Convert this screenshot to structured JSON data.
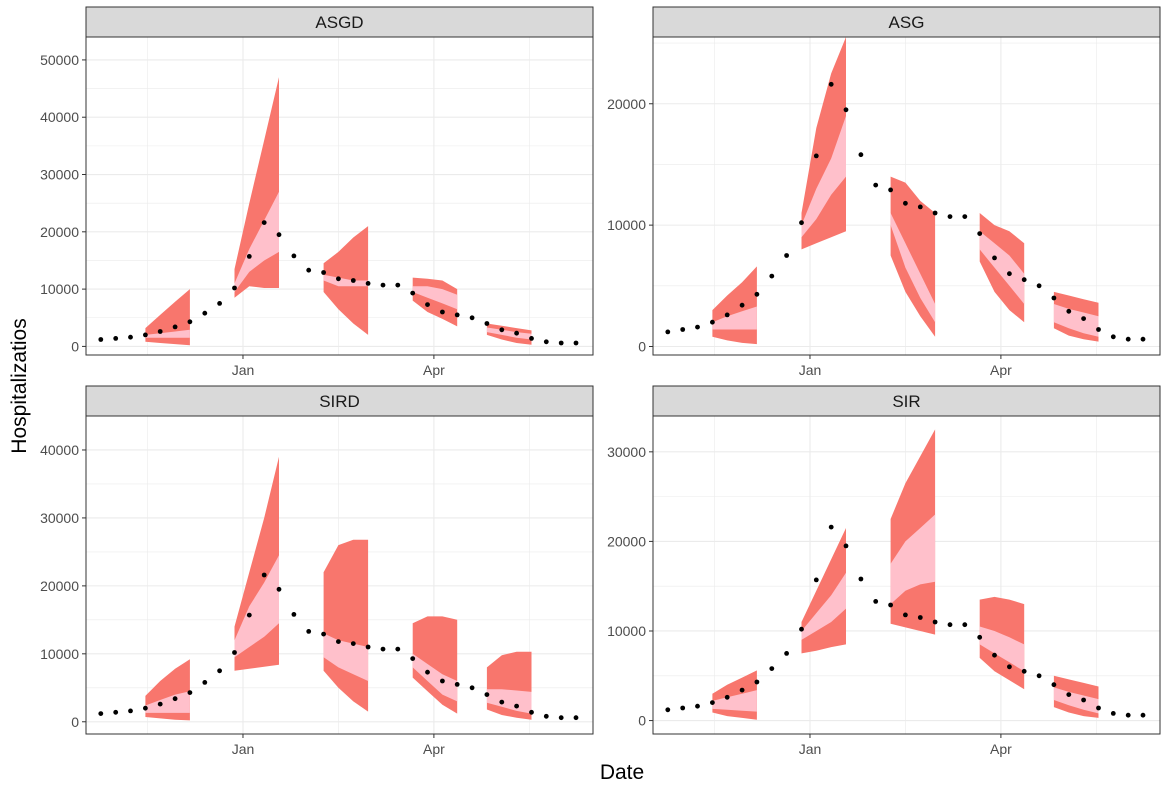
{
  "colors": {
    "outer_band": "#F8766D",
    "inner_band": "#FFC0CB",
    "points": "#000000",
    "strip_fill": "#D9D9D9",
    "grid": "#EBEBEB",
    "panel_border": "#333333"
  },
  "chart_data": {
    "type": "area",
    "xlabel": "Date",
    "ylabel": "Hospitalizatios",
    "x_ticks": [
      "Jan",
      "Apr"
    ],
    "x_tick_dates": [
      "2021-01-01",
      "2021-04-01"
    ],
    "xlim": [
      "2020-10-19",
      "2021-06-15"
    ],
    "observed_dates": [
      "2020-10-26",
      "2020-11-02",
      "2020-11-09",
      "2020-11-16",
      "2020-11-23",
      "2020-11-30",
      "2020-12-07",
      "2020-12-14",
      "2020-12-21",
      "2020-12-28",
      "2021-01-04",
      "2021-01-11",
      "2021-01-18",
      "2021-01-25",
      "2021-02-01",
      "2021-02-08",
      "2021-02-15",
      "2021-02-22",
      "2021-03-01",
      "2021-03-08",
      "2021-03-15",
      "2021-03-22",
      "2021-03-29",
      "2021-04-05",
      "2021-04-12",
      "2021-04-19",
      "2021-04-26",
      "2021-05-03",
      "2021-05-10",
      "2021-05-17",
      "2021-05-24",
      "2021-05-31",
      "2021-06-07"
    ],
    "observed_values": [
      1200,
      1400,
      1600,
      2000,
      2600,
      3400,
      4300,
      5800,
      7500,
      10200,
      15700,
      21600,
      19500,
      15800,
      13300,
      12900,
      11800,
      11500,
      11000,
      10700,
      10700,
      9300,
      7300,
      6000,
      5500,
      5000,
      4000,
      2900,
      2300,
      1400,
      800,
      600,
      600
    ],
    "panels": [
      {
        "title": "ASGD",
        "ylim": [
          -1500,
          54000
        ],
        "yticks": [
          0,
          10000,
          20000,
          30000,
          40000,
          50000
        ],
        "bands": [
          {
            "dates": [
              "2020-11-16",
              "2020-11-23",
              "2020-11-30",
              "2020-12-07"
            ],
            "outer_lo": [
              800,
              600,
              400,
              200
            ],
            "outer_hi": [
              3200,
              5500,
              7800,
              10000
            ],
            "inner_lo": [
              1500,
              1500,
              1500,
              1500
            ],
            "inner_hi": [
              2000,
              2300,
              2600,
              2900
            ]
          },
          {
            "dates": [
              "2020-12-28",
              "2021-01-04",
              "2021-01-11",
              "2021-01-18"
            ],
            "outer_lo": [
              8500,
              10500,
              10200,
              10200
            ],
            "outer_hi": [
              13500,
              25000,
              36000,
              47000
            ],
            "inner_lo": [
              9500,
              13000,
              15000,
              16500
            ],
            "inner_hi": [
              11000,
              17000,
              22000,
              27000
            ]
          },
          {
            "dates": [
              "2021-02-08",
              "2021-02-15",
              "2021-02-22",
              "2021-03-01"
            ],
            "outer_lo": [
              9500,
              6500,
              4000,
              2000
            ],
            "outer_hi": [
              14500,
              16500,
              19000,
              21000
            ],
            "inner_lo": [
              11500,
              10500,
              10500,
              10500
            ],
            "inner_hi": [
              12500,
              12000,
              11500,
              11500
            ]
          },
          {
            "dates": [
              "2021-03-22",
              "2021-03-29",
              "2021-04-05",
              "2021-04-12"
            ],
            "outer_lo": [
              8000,
              6000,
              4800,
              3500
            ],
            "outer_hi": [
              12000,
              11800,
              11500,
              10000
            ],
            "inner_lo": [
              9500,
              8500,
              7500,
              6500
            ],
            "inner_hi": [
              10500,
              10500,
              10000,
              9000
            ]
          },
          {
            "dates": [
              "2021-04-26",
              "2021-05-03",
              "2021-05-10",
              "2021-05-17"
            ],
            "outer_lo": [
              2000,
              1200,
              600,
              300
            ],
            "outer_hi": [
              4000,
              3600,
              3200,
              2800
            ],
            "inner_lo": [
              2500,
              2000,
              1500,
              1200
            ],
            "inner_hi": [
              3300,
              2900,
              2500,
              2200
            ]
          }
        ]
      },
      {
        "title": "ASG",
        "ylim": [
          -700,
          25500
        ],
        "yticks": [
          0,
          10000,
          20000
        ],
        "bands": [
          {
            "dates": [
              "2020-11-16",
              "2020-11-23",
              "2020-11-30",
              "2020-12-07"
            ],
            "outer_lo": [
              800,
              500,
              300,
              200
            ],
            "outer_hi": [
              3000,
              4200,
              5300,
              6600
            ],
            "inner_lo": [
              1400,
              1400,
              1400,
              1400
            ],
            "inner_hi": [
              2000,
              2500,
              2900,
              3300
            ]
          },
          {
            "dates": [
              "2020-12-28",
              "2021-01-04",
              "2021-01-11",
              "2021-01-18"
            ],
            "outer_lo": [
              8000,
              8500,
              9000,
              9500
            ],
            "outer_hi": [
              11000,
              18000,
              22500,
              25500
            ],
            "inner_lo": [
              9000,
              10500,
              12500,
              14000
            ],
            "inner_hi": [
              10000,
              13000,
              15500,
              19000
            ]
          },
          {
            "dates": [
              "2021-02-08",
              "2021-02-15",
              "2021-02-22",
              "2021-03-01"
            ],
            "outer_lo": [
              7500,
              4500,
              2500,
              800
            ],
            "outer_hi": [
              14000,
              13500,
              12000,
              11000
            ],
            "inner_lo": [
              10000,
              6500,
              4000,
              2000
            ],
            "inner_hi": [
              11000,
              8500,
              6000,
              3500
            ]
          },
          {
            "dates": [
              "2021-03-22",
              "2021-03-29",
              "2021-04-05",
              "2021-04-12"
            ],
            "outer_lo": [
              7000,
              4500,
              3000,
              2000
            ],
            "outer_hi": [
              11000,
              10000,
              9500,
              8500
            ],
            "inner_lo": [
              8000,
              6500,
              5000,
              3500
            ],
            "inner_hi": [
              9500,
              8500,
              7500,
              6000
            ]
          },
          {
            "dates": [
              "2021-04-26",
              "2021-05-03",
              "2021-05-10",
              "2021-05-17"
            ],
            "outer_lo": [
              1500,
              900,
              600,
              400
            ],
            "outer_hi": [
              4500,
              4200,
              3900,
              3600
            ],
            "inner_lo": [
              2000,
              1500,
              1100,
              800
            ],
            "inner_hi": [
              3500,
              3100,
              2800,
              2500
            ]
          }
        ]
      },
      {
        "title": "SIRD",
        "ylim": [
          -1800,
          45000
        ],
        "yticks": [
          0,
          10000,
          20000,
          30000,
          40000
        ],
        "bands": [
          {
            "dates": [
              "2020-11-16",
              "2020-11-23",
              "2020-11-30",
              "2020-12-07"
            ],
            "outer_lo": [
              700,
              500,
              300,
              200
            ],
            "outer_hi": [
              3800,
              6000,
              7800,
              9200
            ],
            "inner_lo": [
              1300,
              1300,
              1300,
              1300
            ],
            "inner_hi": [
              2400,
              3200,
              4000,
              4500
            ]
          },
          {
            "dates": [
              "2020-12-28",
              "2021-01-04",
              "2021-01-11",
              "2021-01-18"
            ],
            "outer_lo": [
              7500,
              7800,
              8100,
              8400
            ],
            "outer_hi": [
              14000,
              22000,
              30000,
              39000
            ],
            "inner_lo": [
              9500,
              11000,
              12500,
              14500
            ],
            "inner_hi": [
              12000,
              17000,
              20500,
              24500
            ]
          },
          {
            "dates": [
              "2021-02-08",
              "2021-02-15",
              "2021-02-22",
              "2021-03-01"
            ],
            "outer_lo": [
              7500,
              5000,
              3000,
              1500
            ],
            "outer_hi": [
              22000,
              26000,
              26800,
              26800
            ],
            "inner_lo": [
              9500,
              8000,
              7000,
              6000
            ],
            "inner_hi": [
              13000,
              12000,
              11500,
              11000
            ]
          },
          {
            "dates": [
              "2021-03-22",
              "2021-03-29",
              "2021-04-05",
              "2021-04-12"
            ],
            "outer_lo": [
              6500,
              4500,
              2500,
              1200
            ],
            "outer_hi": [
              14500,
              15500,
              15500,
              15000
            ],
            "inner_lo": [
              8000,
              6000,
              4000,
              3000
            ],
            "inner_hi": [
              10000,
              8500,
              7000,
              6000
            ]
          },
          {
            "dates": [
              "2021-04-26",
              "2021-05-03",
              "2021-05-10",
              "2021-05-17"
            ],
            "outer_lo": [
              1800,
              1000,
              600,
              300
            ],
            "outer_hi": [
              8000,
              9800,
              10300,
              10300
            ],
            "inner_lo": [
              2800,
              2200,
              1600,
              1200
            ],
            "inner_hi": [
              4800,
              4800,
              4600,
              4400
            ]
          }
        ]
      },
      {
        "title": "SIR",
        "ylim": [
          -1500,
          34000
        ],
        "yticks": [
          0,
          10000,
          20000,
          30000
        ],
        "bands": [
          {
            "dates": [
              "2020-11-16",
              "2020-11-23",
              "2020-11-30",
              "2020-12-07"
            ],
            "outer_lo": [
              900,
              500,
              300,
              100
            ],
            "outer_hi": [
              3000,
              4000,
              4800,
              5600
            ],
            "inner_lo": [
              1300,
              1200,
              1100,
              1000
            ],
            "inner_hi": [
              2200,
              2600,
              3000,
              3400
            ]
          },
          {
            "dates": [
              "2020-12-28",
              "2021-01-04",
              "2021-01-11",
              "2021-01-18"
            ],
            "outer_lo": [
              7500,
              7800,
              8200,
              8500
            ],
            "outer_hi": [
              11000,
              14500,
              18000,
              21500
            ],
            "inner_lo": [
              9000,
              10000,
              11000,
              12500
            ],
            "inner_hi": [
              10000,
              12000,
              14000,
              16500
            ]
          },
          {
            "dates": [
              "2021-02-08",
              "2021-02-15",
              "2021-02-22",
              "2021-03-01"
            ],
            "outer_lo": [
              10800,
              10400,
              10000,
              9600
            ],
            "outer_hi": [
              22500,
              26500,
              29500,
              32500
            ],
            "inner_lo": [
              13000,
              14500,
              15200,
              15500
            ],
            "inner_hi": [
              17500,
              20000,
              21500,
              23000
            ]
          },
          {
            "dates": [
              "2021-03-22",
              "2021-03-29",
              "2021-04-05",
              "2021-04-12"
            ],
            "outer_lo": [
              7000,
              5500,
              4500,
              3500
            ],
            "outer_hi": [
              13500,
              13800,
              13500,
              13000
            ],
            "inner_lo": [
              8500,
              7500,
              6500,
              5500
            ],
            "inner_hi": [
              10500,
              10000,
              9300,
              8500
            ]
          },
          {
            "dates": [
              "2021-04-26",
              "2021-05-03",
              "2021-05-10",
              "2021-05-17"
            ],
            "outer_lo": [
              1500,
              900,
              500,
              300
            ],
            "outer_hi": [
              5000,
              4600,
              4200,
              3800
            ],
            "inner_lo": [
              2300,
              1700,
              1200,
              800
            ],
            "inner_hi": [
              3700,
              3200,
              2800,
              2400
            ]
          }
        ]
      }
    ]
  }
}
